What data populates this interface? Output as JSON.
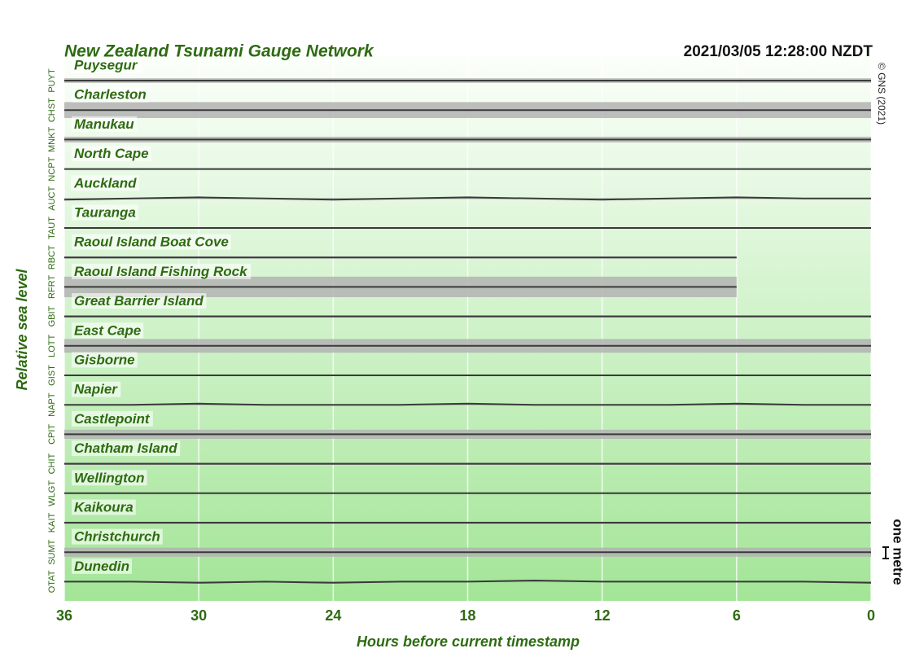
{
  "chart_data": {
    "type": "line",
    "title": "New Zealand Tsunami Gauge Network",
    "timestamp": "2021/03/05 12:28:00 NZDT",
    "copyright": "© GNS (2021)",
    "y_label": "Relative sea level",
    "x_label": "Hours before current timestamp",
    "scale_label": "one metre",
    "scale_bar": 1,
    "xlim": [
      36,
      0
    ],
    "xticks": [
      36,
      30,
      24,
      18,
      12,
      6,
      0
    ],
    "grid": true,
    "x": [
      36,
      33,
      30,
      27,
      24,
      21,
      18,
      15,
      12,
      9,
      6,
      3,
      0
    ],
    "series": [
      {
        "name": "Puysegur",
        "code": "PUYT",
        "color": "#3a3a3a",
        "noise": 0.2,
        "values": [
          0,
          0,
          0,
          0,
          0,
          0,
          0,
          0,
          0,
          0,
          0,
          0,
          0
        ]
      },
      {
        "name": "Charleston",
        "code": "CHST",
        "color": "#3a3a3a",
        "noise": 0.7,
        "values": [
          0,
          0,
          0,
          0,
          0,
          0,
          0,
          0,
          0,
          0,
          0,
          0,
          0
        ]
      },
      {
        "name": "Manukau",
        "code": "MNKT",
        "color": "#3a3a3a",
        "noise": 0.25,
        "values": [
          0,
          0,
          0,
          0,
          0,
          0,
          0,
          0,
          0,
          0,
          0,
          0,
          0
        ]
      },
      {
        "name": "North Cape",
        "code": "NCPT",
        "color": "#3a3a3a",
        "noise": 0.05,
        "values": [
          0,
          0,
          0,
          0,
          0,
          0,
          0,
          0,
          0,
          0,
          0,
          0,
          0
        ]
      },
      {
        "name": "Auckland",
        "code": "AUCT",
        "color": "#3a3a3a",
        "noise": 0.05,
        "values": [
          -0.1,
          0,
          0.1,
          0,
          -0.1,
          0,
          0.1,
          0,
          -0.1,
          0,
          0.1,
          0,
          0
        ]
      },
      {
        "name": "Tauranga",
        "code": "TAUT",
        "color": "#3a3a3a",
        "noise": 0.05,
        "values": [
          0,
          0,
          0,
          0,
          0,
          0,
          0,
          0,
          0,
          0,
          0,
          0,
          0
        ]
      },
      {
        "name": "Raoul Island Boat Cove",
        "code": "RBCT",
        "color": "#3a3a3a",
        "noise": 0.1,
        "values": [
          0,
          0,
          0,
          0,
          0,
          0,
          0,
          0,
          0,
          0,
          0,
          null,
          null
        ]
      },
      {
        "name": "Raoul Island Fishing Rock",
        "code": "RFRT",
        "color": "#3a3a3a",
        "noise": 0.9,
        "values": [
          0,
          0,
          0,
          0,
          0,
          0,
          0,
          0,
          0,
          0,
          0,
          null,
          null
        ]
      },
      {
        "name": "Great Barrier Island",
        "code": "GBIT",
        "color": "#3a3a3a",
        "noise": 0.1,
        "values": [
          0,
          0,
          0,
          0,
          0,
          0,
          0,
          0,
          0,
          0,
          0,
          0,
          0
        ]
      },
      {
        "name": "East Cape",
        "code": "LOTT",
        "color": "#3a3a3a",
        "noise": 0.6,
        "values": [
          0,
          0,
          0,
          0,
          0,
          0,
          0,
          0,
          0,
          0,
          0,
          0,
          0
        ]
      },
      {
        "name": "Gisborne",
        "code": "GIST",
        "color": "#3a3a3a",
        "noise": 0.05,
        "values": [
          0,
          0,
          0,
          0,
          0,
          0,
          0,
          0,
          0,
          0,
          0,
          0,
          0
        ]
      },
      {
        "name": "Napier",
        "code": "NAPT",
        "color": "#3a3a3a",
        "noise": 0.05,
        "values": [
          0,
          0,
          0.1,
          0,
          0,
          0,
          0.1,
          0,
          0,
          0,
          0.1,
          0,
          0
        ]
      },
      {
        "name": "Castlepoint",
        "code": "CPIT",
        "color": "#3a3a3a",
        "noise": 0.4,
        "values": [
          0,
          0,
          0,
          0,
          0,
          0,
          0,
          0,
          0,
          0,
          0,
          0,
          0
        ]
      },
      {
        "name": "Chatham Island",
        "code": "CHIT",
        "color": "#3a3a3a",
        "noise": 0.1,
        "values": [
          0,
          0,
          0,
          0,
          0,
          0,
          0,
          0,
          0,
          0,
          0,
          0,
          0
        ]
      },
      {
        "name": "Wellington",
        "code": "WLGT",
        "color": "#3a3a3a",
        "noise": 0.05,
        "values": [
          0,
          0,
          0,
          0,
          0,
          0,
          0,
          0,
          0,
          0,
          0,
          0,
          0
        ]
      },
      {
        "name": "Kaikoura",
        "code": "KAIT",
        "color": "#3a3a3a",
        "noise": 0.1,
        "values": [
          0,
          0,
          0,
          0,
          0,
          0,
          0,
          0,
          0,
          0,
          0,
          0,
          0
        ]
      },
      {
        "name": "Christchurch",
        "code": "SUMT",
        "color": "#3a3a3a",
        "noise": 0.4,
        "values": [
          0,
          0,
          0,
          0,
          0,
          0,
          0,
          0,
          0,
          0,
          0,
          0,
          0
        ]
      },
      {
        "name": "Dunedin",
        "code": "OTAT",
        "color": "#3a3a3a",
        "noise": 0.05,
        "values": [
          0,
          0,
          -0.1,
          0,
          -0.1,
          0,
          0,
          0.1,
          0,
          0,
          0,
          0,
          -0.1
        ]
      }
    ]
  }
}
